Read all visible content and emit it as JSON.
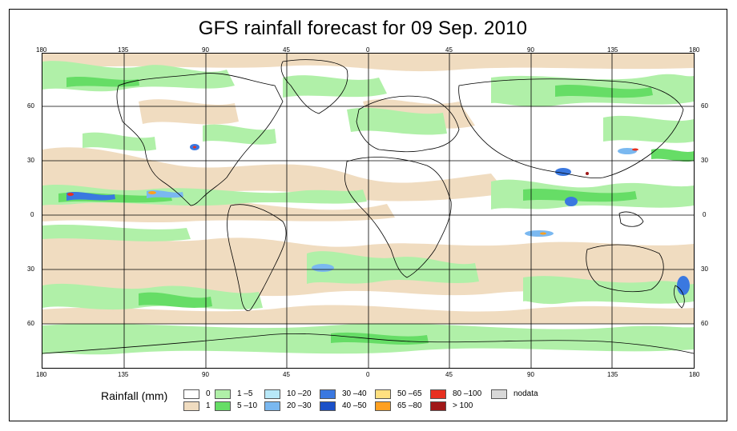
{
  "title": "GFS rainfall forecast for 09 Sep. 2010",
  "longitude_labels": [
    "180",
    "135",
    "90",
    "45",
    "0",
    "45",
    "90",
    "135",
    "180"
  ],
  "latitude_labels": [
    "60",
    "30",
    "0",
    "30",
    "60"
  ],
  "legend": {
    "title": "Rainfall (mm)",
    "items": [
      {
        "label": "0",
        "color": "#ffffff"
      },
      {
        "label": "1",
        "color": "#f0dcc0"
      },
      {
        "label": "1 –5",
        "color": "#b0f0a8"
      },
      {
        "label": "5 –10",
        "color": "#66dd66"
      },
      {
        "label": "10 –20",
        "color": "#b8e8f8"
      },
      {
        "label": "20 –30",
        "color": "#7ab8f0"
      },
      {
        "label": "30 –40",
        "color": "#3a78e0"
      },
      {
        "label": "40 –50",
        "color": "#1a50c8"
      },
      {
        "label": "50 –65",
        "color": "#ffe080"
      },
      {
        "label": "65 –80",
        "color": "#ffa020"
      },
      {
        "label": "80 –100",
        "color": "#e83020"
      },
      {
        "label": "> 100",
        "color": "#a01818"
      },
      {
        "label": "nodata",
        "color": "#d8d8d8"
      }
    ]
  }
}
